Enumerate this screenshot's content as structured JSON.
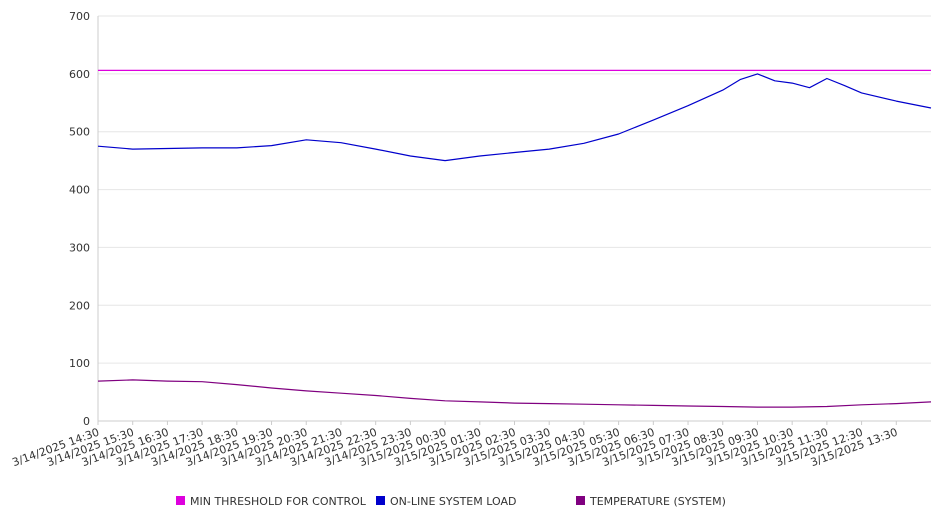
{
  "chart_data": {
    "type": "line",
    "ylim": [
      0,
      700
    ],
    "yticks": [
      0,
      100,
      200,
      300,
      400,
      500,
      600,
      700
    ],
    "x_tick_labels": [
      "3/14/2025 14:30",
      "3/14/2025 15:30",
      "3/14/2025 16:30",
      "3/14/2025 17:30",
      "3/14/2025 18:30",
      "3/14/2025 19:30",
      "3/14/2025 20:30",
      "3/14/2025 21:30",
      "3/14/2025 22:30",
      "3/14/2025 23:30",
      "3/15/2025 00:30",
      "3/15/2025 01:30",
      "3/15/2025 02:30",
      "3/15/2025 03:30",
      "3/15/2025 04:30",
      "3/15/2025 05:30",
      "3/15/2025 06:30",
      "3/15/2025 07:30",
      "3/15/2025 08:30",
      "3/15/2025 09:30",
      "3/15/2025 10:30",
      "3/15/2025 11:30",
      "3/15/2025 12:30",
      "3/15/2025 13:30"
    ],
    "x_start": "3/14/2025 14:30",
    "x_end": "3/15/2025 14:30",
    "grid": true,
    "legend_position": "bottom",
    "series": [
      {
        "name": "MIN THRESHOLD FOR CONTROL",
        "color": "#dd00dd",
        "x": [
          "3/14/2025 14:30",
          "3/15/2025 14:30"
        ],
        "values": [
          606,
          606
        ]
      },
      {
        "name": "ON-LINE SYSTEM LOAD",
        "color": "#0000cc",
        "x": [
          "3/14/2025 14:30",
          "3/14/2025 15:30",
          "3/14/2025 16:30",
          "3/14/2025 17:30",
          "3/14/2025 18:30",
          "3/14/2025 19:30",
          "3/14/2025 20:30",
          "3/14/2025 21:30",
          "3/14/2025 22:30",
          "3/14/2025 23:30",
          "3/15/2025 00:30",
          "3/15/2025 01:30",
          "3/15/2025 02:30",
          "3/15/2025 03:30",
          "3/15/2025 04:30",
          "3/15/2025 05:30",
          "3/15/2025 06:30",
          "3/15/2025 07:30",
          "3/15/2025 08:30",
          "3/15/2025 09:00",
          "3/15/2025 09:30",
          "3/15/2025 10:00",
          "3/15/2025 10:30",
          "3/15/2025 11:00",
          "3/15/2025 11:30",
          "3/15/2025 12:00",
          "3/15/2025 12:30",
          "3/15/2025 13:30",
          "3/15/2025 14:30"
        ],
        "values": [
          475,
          470,
          471,
          472,
          472,
          476,
          486,
          481,
          470,
          458,
          450,
          458,
          464,
          470,
          480,
          496,
          520,
          545,
          572,
          590,
          600,
          588,
          584,
          576,
          592,
          580,
          567,
          553,
          541
        ]
      },
      {
        "name": "TEMPERATURE (SYSTEM)",
        "color": "#800080",
        "x": [
          "3/14/2025 14:30",
          "3/14/2025 15:30",
          "3/14/2025 16:30",
          "3/14/2025 17:30",
          "3/14/2025 18:30",
          "3/14/2025 19:30",
          "3/14/2025 20:30",
          "3/14/2025 21:30",
          "3/14/2025 22:30",
          "3/14/2025 23:30",
          "3/15/2025 00:30",
          "3/15/2025 01:30",
          "3/15/2025 02:30",
          "3/15/2025 03:30",
          "3/15/2025 04:30",
          "3/15/2025 05:30",
          "3/15/2025 06:30",
          "3/15/2025 07:30",
          "3/15/2025 08:30",
          "3/15/2025 09:30",
          "3/15/2025 10:30",
          "3/15/2025 11:30",
          "3/15/2025 12:30",
          "3/15/2025 13:30",
          "3/15/2025 14:30"
        ],
        "values": [
          69,
          71,
          69,
          68,
          63,
          57,
          52,
          48,
          44,
          39,
          35,
          33,
          31,
          30,
          29,
          28,
          27,
          26,
          25,
          24,
          24,
          25,
          28,
          30,
          33
        ]
      }
    ]
  }
}
